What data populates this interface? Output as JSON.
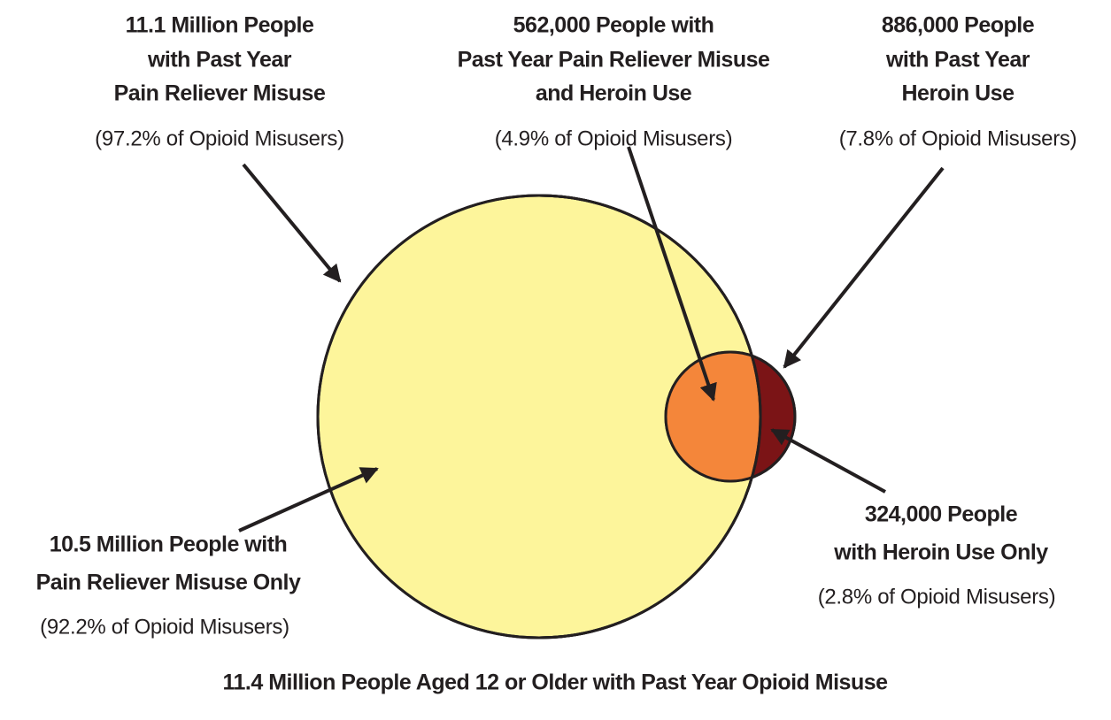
{
  "annotations": [
    {
      "lines": [
        "11.1 Million People",
        "with Past Year",
        "Pain Reliever Misuse"
      ],
      "note": "(97.2% of Opioid Misusers)"
    },
    {
      "lines": [
        "562,000 People with",
        "Past Year Pain Reliever Misuse",
        "and Heroin Use"
      ],
      "note": "(4.9% of Opioid Misusers)"
    },
    {
      "lines": [
        "886,000 People",
        "with Past Year",
        "Heroin Use"
      ],
      "note": "(7.8% of Opioid Misusers)"
    },
    {
      "lines": [
        "324,000 People",
        "with Heroin Use Only"
      ],
      "note": "(2.8% of Opioid Misusers)"
    },
    {
      "lines": [
        "10.5 Million People with",
        "Pain Reliever Misuse Only"
      ],
      "note": "(92.2% of Opioid Misusers)"
    }
  ],
  "caption": "11.4 Million People Aged 12 or Older with Past Year Opioid Misuse"
}
